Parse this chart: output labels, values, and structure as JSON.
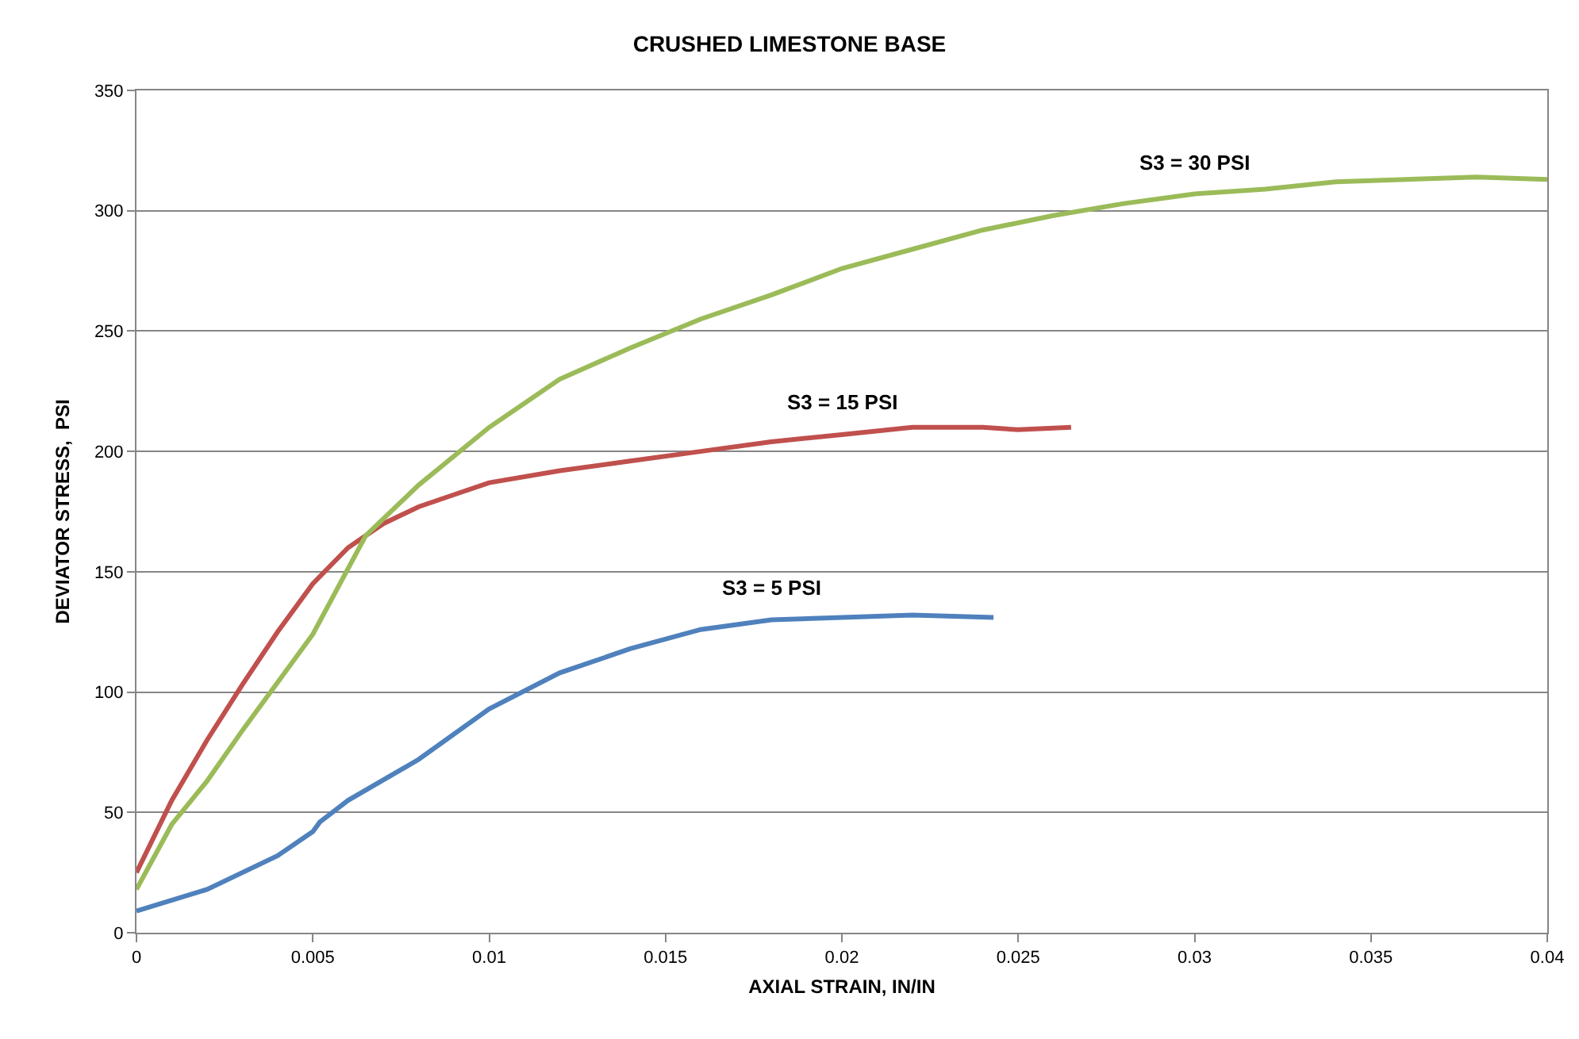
{
  "chart_data": {
    "type": "line",
    "title": "CRUSHED LIMESTONE BASE",
    "xlabel": "AXIAL STRAIN, IN/IN",
    "ylabel": "DEVIATOR STRESS,  PSI",
    "xlim": [
      0,
      0.04
    ],
    "xticks": [
      0,
      0.005,
      0.01,
      0.015,
      0.02,
      0.025,
      0.03,
      0.035,
      0.04
    ],
    "ylim": [
      0,
      350
    ],
    "yticks": [
      0,
      50,
      100,
      150,
      200,
      250,
      300,
      350
    ],
    "grid": "y",
    "legend": false,
    "marker": "none",
    "line_style": "solid",
    "series": [
      {
        "name": "S3 = 5 PSI",
        "color": "#4f81bd",
        "x": [
          0,
          0.002,
          0.004,
          0.005,
          0.0052,
          0.006,
          0.008,
          0.01,
          0.012,
          0.014,
          0.016,
          0.018,
          0.02,
          0.022,
          0.0243
        ],
        "values": [
          9,
          18,
          32,
          42,
          46,
          55,
          72,
          93,
          108,
          118,
          126,
          130,
          131,
          132,
          131
        ]
      },
      {
        "name": "S3 = 15 PSI",
        "color": "#c0504d",
        "x": [
          0,
          0.001,
          0.002,
          0.003,
          0.004,
          0.005,
          0.006,
          0.007,
          0.008,
          0.009,
          0.01,
          0.012,
          0.014,
          0.016,
          0.018,
          0.02,
          0.022,
          0.024,
          0.025,
          0.0265
        ],
        "values": [
          25,
          55,
          80,
          103,
          125,
          145,
          160,
          170,
          177,
          182,
          187,
          192,
          196,
          200,
          204,
          207,
          210,
          210,
          209,
          210
        ]
      },
      {
        "name": "S3 = 30 PSI",
        "color": "#9bbb59",
        "x": [
          0,
          0.001,
          0.002,
          0.003,
          0.004,
          0.005,
          0.0065,
          0.008,
          0.01,
          0.012,
          0.014,
          0.016,
          0.018,
          0.02,
          0.022,
          0.024,
          0.026,
          0.028,
          0.03,
          0.032,
          0.034,
          0.036,
          0.038,
          0.04
        ],
        "values": [
          18,
          45,
          63,
          84,
          104,
          124,
          165,
          186,
          210,
          230,
          243,
          255,
          265,
          276,
          284,
          292,
          298,
          303,
          307,
          309,
          312,
          313,
          314,
          313
        ]
      }
    ]
  }
}
